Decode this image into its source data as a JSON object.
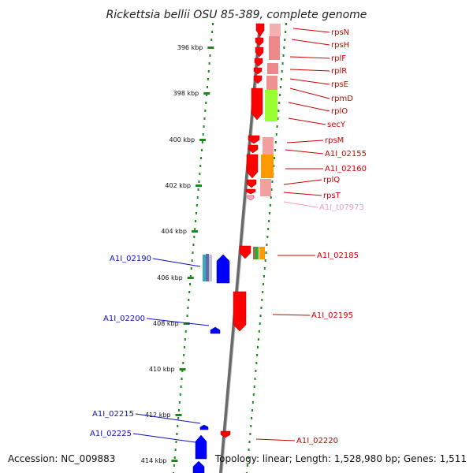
{
  "title": "Rickettsia bellii OSU 85-389, complete genome",
  "accession": "Accession: NC_009883",
  "topology": "Topology: linear; Length: 1,528,980 bp; Genes: 1,511",
  "scale_ticks": [
    "396 kbp",
    "398 kbp",
    "400 kbp",
    "402 kbp",
    "404 kbp",
    "406 kbp",
    "408 kbp",
    "410 kbp",
    "412 kbp",
    "414 kbp"
  ],
  "colors": {
    "red_gene": "#ff0000",
    "light_red": "#f08080",
    "blue_gene": "#0000ff",
    "green_line": "#1a8a1a",
    "gray_axis": "#888888",
    "orange": "#ff9900",
    "lime": "#99ff33",
    "pink_trna": "#ffaacc",
    "teal": "#33aacc"
  },
  "right_labels": [
    {
      "name": "rpsN",
      "color": "#d00000"
    },
    {
      "name": "rpsH",
      "color": "#d00000"
    },
    {
      "name": "rplF",
      "color": "#d00000"
    },
    {
      "name": "rplR",
      "color": "#d00000"
    },
    {
      "name": "rpsE",
      "color": "#d00000"
    },
    {
      "name": "rpmD",
      "color": "#d00000"
    },
    {
      "name": "rplO",
      "color": "#d00000"
    },
    {
      "name": "secY",
      "color": "#d00000"
    },
    {
      "name": "rpsM",
      "color": "#d00000"
    },
    {
      "name": "A1I_02155",
      "color": "#d00000"
    },
    {
      "name": "A1I_02160",
      "color": "#d00000"
    },
    {
      "name": "rplQ",
      "color": "#d00000"
    },
    {
      "name": "rpsT",
      "color": "#d00000"
    },
    {
      "name": "A1I_t07973",
      "color": "#ff99bb"
    },
    {
      "name": "A1I_02185",
      "color": "#d00000"
    },
    {
      "name": "A1I_02195",
      "color": "#d00000"
    },
    {
      "name": "A1I_02220",
      "color": "#d00000"
    }
  ],
  "left_labels": [
    {
      "name": "A1I_02190",
      "color": "#1010c0"
    },
    {
      "name": "A1I_02200",
      "color": "#1010c0"
    },
    {
      "name": "A1I_02215",
      "color": "#1010c0"
    },
    {
      "name": "A1I_02225",
      "color": "#1010c0"
    }
  ]
}
